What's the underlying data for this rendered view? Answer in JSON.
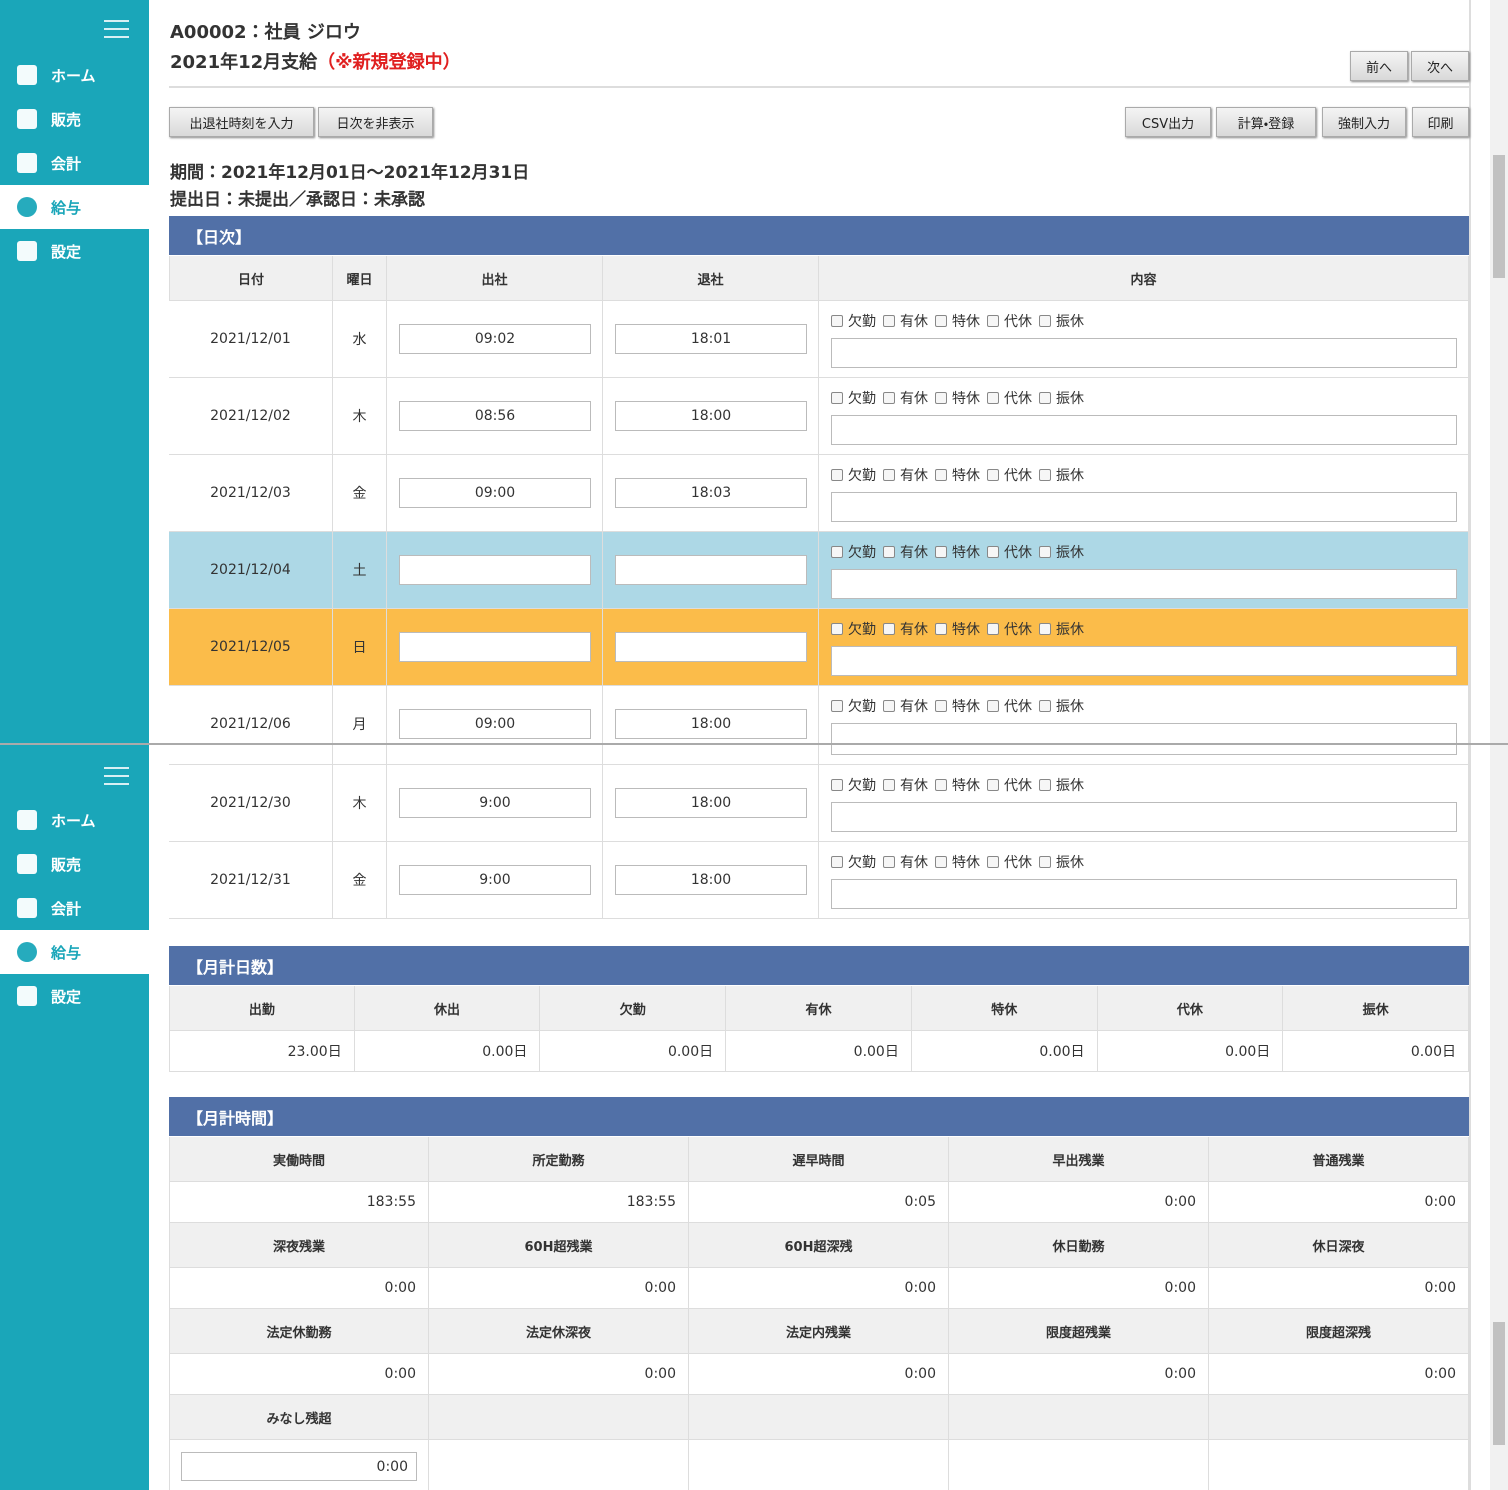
{
  "sidebar": {
    "items": [
      "ホーム",
      "販売",
      "会計",
      "給与",
      "設定"
    ],
    "active": 3
  },
  "header": {
    "employee": "A00002：社員 ジロウ",
    "pay_month": "2021年12月支給",
    "status": "（※新規登録中）",
    "nav_buttons": [
      "前へ",
      "次へ"
    ]
  },
  "toolbar": {
    "left": [
      "出退社時刻を入力",
      "日次を非表示"
    ],
    "right": [
      "CSV出力",
      "計算・登録",
      "強制入力",
      "印刷"
    ]
  },
  "period": "期間：2021年12月01日～2021年12月31日",
  "submission": "提出日：未提出／承認日：未承認",
  "daily": {
    "title": "【日次】",
    "columns": [
      "日付",
      "曜日",
      "出社",
      "退社",
      "内容"
    ],
    "leave_types": [
      "欠勤",
      "有休",
      "特休",
      "代休",
      "振休"
    ],
    "rows": [
      {
        "date": "2021/12/01",
        "weekday": "水",
        "in": "09:02",
        "out": "18:01"
      },
      {
        "date": "2021/12/02",
        "weekday": "木",
        "in": "08:56",
        "out": "18:00"
      },
      {
        "date": "2021/12/03",
        "weekday": "金",
        "in": "09:00",
        "out": "18:03"
      },
      {
        "date": "2021/12/04",
        "weekday": "土",
        "in": null,
        "out": null,
        "color": "#add8e6"
      },
      {
        "date": "2021/12/05",
        "weekday": "日",
        "in": null,
        "out": null,
        "color": "#fbbc4a"
      },
      {
        "date": "2021/12/06",
        "weekday": "月",
        "in": "09:00",
        "out": "18:00"
      },
      {
        "date": "2021/12/30",
        "weekday": "木",
        "in": "9:00",
        "out": "18:00"
      },
      {
        "date": "2021/12/31",
        "weekday": "金",
        "in": "9:00",
        "out": "18:00"
      }
    ]
  },
  "monthly_days": {
    "title": "【月計日数】",
    "headers": [
      "出勤",
      "休出",
      "欠勤",
      "有休",
      "特休",
      "代休",
      "振休"
    ],
    "values": [
      "23.00日",
      "0.00日",
      "0.00日",
      "0.00日",
      "0.00日",
      "0.00日",
      "0.00日"
    ]
  },
  "monthly_time": {
    "title": "【月計時間】",
    "headers": [
      "実働時間",
      "所定勤務",
      "遅早時間",
      "早出残業",
      "普通残業",
      "深夜残業",
      "60H超残業",
      "60H超深残",
      "休日勤務",
      "休日深夜",
      "法定休勤務",
      "法定休深夜",
      "法定内残業",
      "限度超残業",
      "限度超深残",
      "みなし残超"
    ],
    "values": [
      "183:55",
      "183:55",
      "0:05",
      "0:00",
      "0:00",
      "0:00",
      "0:00",
      "0:00",
      "0:00",
      "0:00",
      "0:00",
      "0:00",
      "0:00",
      "0:00",
      "0:00",
      "0:00"
    ]
  }
}
